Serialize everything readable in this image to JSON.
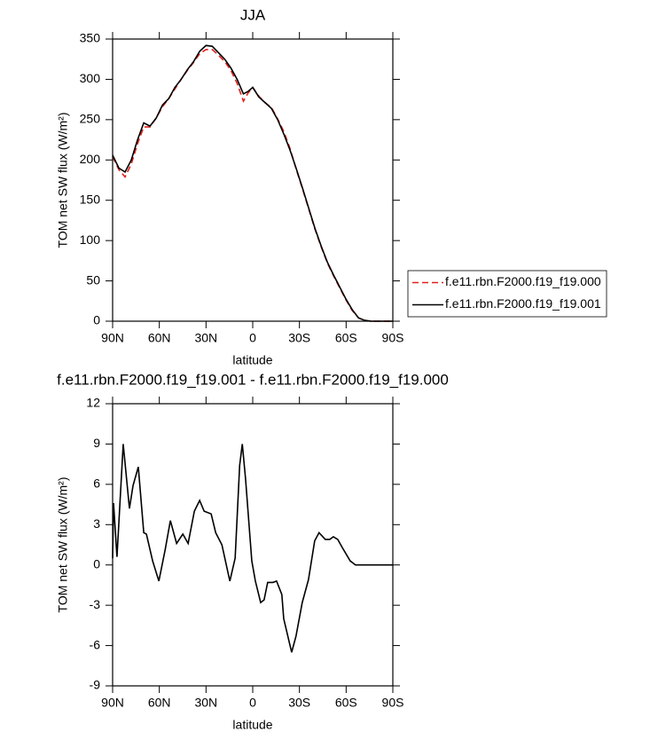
{
  "chart_data": [
    {
      "type": "line",
      "title": "JJA",
      "x_label": "latitude",
      "y_label": "TOM net SW flux (W/m²)",
      "x": [
        90,
        86,
        82,
        78,
        74,
        70,
        66,
        62,
        58,
        54,
        50,
        46,
        42,
        38,
        34,
        30,
        26,
        22,
        18,
        14,
        10,
        6,
        3,
        0,
        -4,
        -8,
        -12,
        -16,
        -20,
        -24,
        -28,
        -32,
        -36,
        -40,
        -44,
        -48,
        -52,
        -56,
        -60,
        -64,
        -68,
        -72,
        -76,
        -80,
        -90
      ],
      "series": [
        {
          "name": "f.e11.rbn.F2000.f19_f19.000",
          "color": "#e0201b",
          "dashed": true,
          "values": [
            204,
            188,
            179,
            195,
            220,
            241,
            241,
            252,
            266,
            276,
            288,
            300,
            311,
            321,
            332,
            337,
            337,
            330,
            322,
            311,
            295,
            273,
            283,
            290,
            279,
            271,
            265,
            251,
            235,
            214,
            188,
            164,
            139,
            114,
            92,
            72,
            56,
            41,
            26,
            13,
            4,
            1,
            0,
            0,
            0
          ]
        },
        {
          "name": "f.e11.rbn.F2000.f19_f19.001",
          "color": "#000000",
          "dashed": false,
          "values": [
            206,
            190,
            185,
            200,
            225,
            246,
            242,
            252,
            268,
            276,
            290,
            300,
            312,
            322,
            335,
            342,
            341,
            333,
            325,
            314,
            300,
            282,
            285,
            290,
            278,
            271,
            264,
            250,
            232,
            212,
            189,
            165,
            140,
            115,
            93,
            73,
            57,
            42,
            27,
            14,
            4,
            1,
            0,
            0,
            0
          ]
        }
      ],
      "xlim": [
        90,
        -90
      ],
      "xticks": [
        {
          "value": 90,
          "label": "90N"
        },
        {
          "value": 60,
          "label": "60N"
        },
        {
          "value": 30,
          "label": "30N"
        },
        0,
        {
          "value": -30,
          "label": "30S"
        },
        {
          "value": -60,
          "label": "60S"
        },
        {
          "value": -90,
          "label": "90S"
        }
      ],
      "ylim": [
        0,
        350
      ],
      "yticks": [
        0,
        50,
        100,
        150,
        200,
        250,
        300,
        350
      ],
      "legend": "right"
    },
    {
      "type": "line",
      "title": "f.e11.rbn.F2000.f19_f19.001 - f.e11.rbn.F2000.f19_f19.000",
      "x_label": "latitude",
      "y_label": "TOM net SW flux (W/m²)",
      "x": [
        90,
        89.4,
        87.2,
        83.2,
        79.2,
        76.9,
        73.5,
        70.0,
        68.3,
        64.3,
        60.3,
        56.3,
        52.9,
        48.9,
        44.9,
        41.5,
        37.5,
        34.1,
        31.2,
        26.7,
        23.8,
        19.8,
        14.7,
        11.3,
        8.4,
        6.7,
        4.6,
        0.6,
        -1.7,
        -5.1,
        -7.3,
        -9.6,
        -13.0,
        -15.3,
        -18.7,
        -19.9,
        -25.0,
        -27.8,
        -31.8,
        -35.8,
        -39.8,
        -42.6,
        -46.6,
        -49.5,
        -51.8,
        -54.6,
        -57.5,
        -62.6,
        -66.0,
        -90
      ],
      "values": [
        0.5,
        4.6,
        0.6,
        9.0,
        4.2,
        5.9,
        7.3,
        2.4,
        2.3,
        0.3,
        -1.2,
        1.1,
        3.3,
        1.6,
        2.3,
        1.6,
        4.0,
        4.8,
        4.0,
        3.8,
        2.4,
        1.5,
        -1.2,
        0.5,
        7.4,
        9.0,
        6.4,
        0.3,
        -1.2,
        -2.8,
        -2.6,
        -1.3,
        -1.3,
        -1.2,
        -2.2,
        -4.0,
        -6.5,
        -5.3,
        -2.8,
        -1.1,
        1.8,
        2.4,
        1.9,
        1.9,
        2.1,
        1.9,
        1.3,
        0.3,
        0,
        0
      ],
      "color": "#000000",
      "xlim": [
        90,
        -90
      ],
      "xticks": [
        {
          "value": 90,
          "label": "90N"
        },
        {
          "value": 60,
          "label": "60N"
        },
        {
          "value": 30,
          "label": "30N"
        },
        0,
        {
          "value": -30,
          "label": "30S"
        },
        {
          "value": -60,
          "label": "60S"
        },
        {
          "value": -90,
          "label": "90S"
        }
      ],
      "ylim": [
        -9,
        12
      ],
      "yticks": [
        -9,
        -6,
        -3,
        0,
        3,
        6,
        9,
        12
      ]
    }
  ]
}
